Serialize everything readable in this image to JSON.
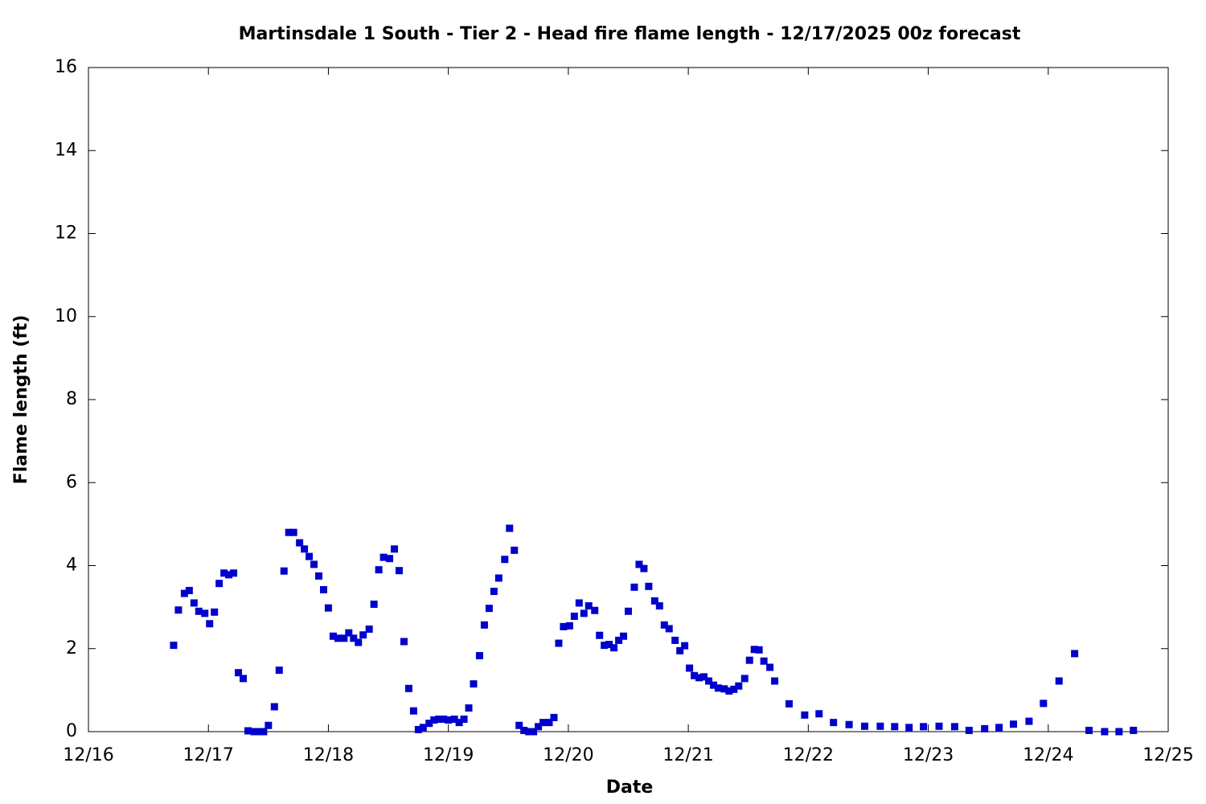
{
  "chart_data": {
    "type": "scatter",
    "title": "Martinsdale 1 South - Tier 2 - Head fire flame length - 12/17/2025 00z forecast",
    "x_label": "Date",
    "y_label": "Flame length (ft)",
    "xlim": [
      16,
      25
    ],
    "xticks": [
      {
        "value": 16,
        "label": "12/16"
      },
      {
        "value": 17,
        "label": "12/17"
      },
      {
        "value": 18,
        "label": "12/18"
      },
      {
        "value": 19,
        "label": "12/19"
      },
      {
        "value": 20,
        "label": "12/20"
      },
      {
        "value": 21,
        "label": "12/21"
      },
      {
        "value": 22,
        "label": "12/22"
      },
      {
        "value": 23,
        "label": "12/23"
      },
      {
        "value": 24,
        "label": "12/24"
      },
      {
        "value": 25,
        "label": "12/25"
      }
    ],
    "ylim": [
      0,
      16
    ],
    "yticks": [
      0,
      2,
      4,
      6,
      8,
      10,
      12,
      14,
      16
    ],
    "grid": false,
    "color": "#0000cc",
    "x": [
      16.71,
      16.75,
      16.8,
      16.84,
      16.88,
      16.92,
      16.97,
      17.01,
      17.05,
      17.09,
      17.13,
      17.17,
      17.21,
      17.25,
      17.29,
      17.33,
      17.38,
      17.42,
      17.46,
      17.5,
      17.55,
      17.59,
      17.63,
      17.67,
      17.71,
      17.76,
      17.8,
      17.84,
      17.88,
      17.92,
      17.96,
      18.0,
      18.04,
      18.08,
      18.13,
      18.17,
      18.21,
      18.25,
      18.29,
      18.34,
      18.38,
      18.42,
      18.46,
      18.51,
      18.55,
      18.59,
      18.63,
      18.67,
      18.71,
      18.75,
      18.79,
      18.84,
      18.88,
      18.92,
      18.96,
      19.0,
      19.05,
      19.09,
      19.13,
      19.17,
      19.21,
      19.26,
      19.3,
      19.34,
      19.38,
      19.42,
      19.47,
      19.51,
      19.55,
      19.59,
      19.63,
      19.67,
      19.71,
      19.75,
      19.79,
      19.84,
      19.88,
      19.92,
      19.96,
      20.01,
      20.05,
      20.09,
      20.13,
      20.17,
      20.22,
      20.26,
      20.3,
      20.34,
      20.38,
      20.42,
      20.46,
      20.5,
      20.55,
      20.59,
      20.63,
      20.67,
      20.72,
      20.76,
      20.8,
      20.84,
      20.89,
      20.93,
      20.97,
      21.01,
      21.05,
      21.09,
      21.13,
      21.17,
      21.21,
      21.25,
      21.3,
      21.34,
      21.38,
      21.42,
      21.47,
      21.51,
      21.55,
      21.59,
      21.63,
      21.68,
      21.72,
      21.84,
      21.97,
      22.09,
      22.21,
      22.34,
      22.47,
      22.6,
      22.72,
      22.84,
      22.96,
      23.09,
      23.22,
      23.34,
      23.47,
      23.59,
      23.71,
      23.84,
      23.96,
      24.09,
      24.22,
      24.34,
      24.47,
      24.59,
      24.71
    ],
    "values": [
      2.08,
      2.93,
      3.33,
      3.4,
      3.1,
      2.9,
      2.85,
      2.6,
      2.88,
      3.57,
      3.82,
      3.78,
      3.82,
      1.42,
      1.28,
      0.02,
      0,
      0,
      0,
      0.15,
      0.6,
      1.48,
      3.87,
      4.8,
      4.8,
      4.55,
      4.4,
      4.22,
      4.03,
      3.75,
      3.42,
      2.98,
      2.3,
      2.25,
      2.25,
      2.38,
      2.25,
      2.15,
      2.33,
      2.47,
      3.07,
      3.9,
      4.2,
      4.17,
      4.4,
      3.88,
      2.17,
      1.04,
      0.5,
      0.05,
      0.1,
      0.2,
      0.28,
      0.3,
      0.3,
      0.28,
      0.3,
      0.22,
      0.3,
      0.57,
      1.15,
      1.83,
      2.57,
      2.97,
      3.38,
      3.7,
      4.15,
      4.9,
      4.37,
      0.15,
      0.03,
      0,
      0,
      0.12,
      0.22,
      0.22,
      0.34,
      2.13,
      2.53,
      2.55,
      2.78,
      3.1,
      2.85,
      3.03,
      2.92,
      2.32,
      2.08,
      2.1,
      2.02,
      2.2,
      2.3,
      2.9,
      3.48,
      4.03,
      3.93,
      3.5,
      3.15,
      3.03,
      2.57,
      2.48,
      2.2,
      1.95,
      2.07,
      1.53,
      1.35,
      1.3,
      1.32,
      1.22,
      1.12,
      1.05,
      1.03,
      0.98,
      1.02,
      1.1,
      1.28,
      1.72,
      1.98,
      1.97,
      1.7,
      1.55,
      1.22,
      0.67,
      0.4,
      0.43,
      0.22,
      0.17,
      0.13,
      0.13,
      0.12,
      0.1,
      0.12,
      0.13,
      0.12,
      0.03,
      0.07,
      0.1,
      0.18,
      0.25,
      0.68,
      1.22,
      1.88,
      0.03,
      0,
      0,
      0.03
    ]
  }
}
